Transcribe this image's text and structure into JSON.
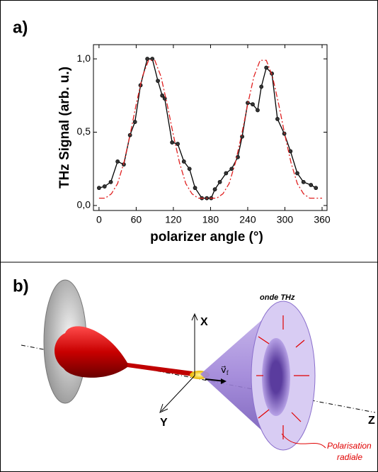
{
  "chart_data": {
    "type": "line",
    "panel_label": "a)",
    "xlabel": "polarizer angle (°)",
    "ylabel": "THz Signal (arb. u.)",
    "xlim": [
      -9,
      368
    ],
    "ylim": [
      -0.034,
      1.097
    ],
    "xticks": [
      0,
      60,
      120,
      180,
      240,
      300,
      360
    ],
    "yticks": [
      {
        "value": 0,
        "label": "0,0"
      },
      {
        "value": 0.5,
        "label": "0,5"
      },
      {
        "value": 1,
        "label": "1,0"
      }
    ],
    "series": [
      {
        "color": "#000000",
        "markers": true,
        "dash": "solid",
        "x": [
          0,
          9,
          19,
          30,
          40,
          50,
          58,
          67,
          78,
          86,
          95,
          102,
          106,
          118,
          127,
          137,
          146,
          155,
          166,
          174,
          181,
          187,
          195,
          205,
          214,
          224,
          231,
          240,
          248,
          256,
          262,
          270,
          279,
          288,
          299,
          309,
          320,
          330,
          342,
          350
        ],
        "values": [
          0.12,
          0.13,
          0.16,
          0.3,
          0.28,
          0.48,
          0.57,
          0.82,
          1.0,
          1.0,
          0.85,
          0.75,
          0.73,
          0.43,
          0.42,
          0.3,
          0.25,
          0.12,
          0.05,
          0.05,
          0.05,
          0.11,
          0.16,
          0.22,
          0.25,
          0.33,
          0.47,
          0.7,
          0.69,
          0.65,
          0.81,
          0.94,
          0.9,
          0.59,
          0.49,
          0.37,
          0.22,
          0.16,
          0.14,
          0.12
        ]
      },
      {
        "color": "#e02020",
        "markers": false,
        "dash": "dashdot",
        "x": [
          0,
          10,
          20,
          30,
          40,
          50,
          60,
          70,
          80,
          90,
          100,
          110,
          120,
          130,
          140,
          150,
          160,
          170,
          180,
          190,
          200,
          210,
          220,
          230,
          240,
          250,
          260,
          270,
          280,
          290,
          300,
          310,
          320,
          330,
          340,
          350,
          360
        ],
        "values": [
          0.05,
          0.05,
          0.08,
          0.15,
          0.29,
          0.48,
          0.69,
          0.88,
          0.99,
          0.99,
          0.88,
          0.69,
          0.48,
          0.29,
          0.15,
          0.08,
          0.05,
          0.05,
          0.05,
          0.05,
          0.08,
          0.15,
          0.29,
          0.48,
          0.69,
          0.88,
          0.99,
          0.99,
          0.88,
          0.69,
          0.48,
          0.29,
          0.15,
          0.08,
          0.05,
          0.05,
          0.05
        ]
      }
    ]
  },
  "diagram": {
    "panel_label": "b)",
    "axis_x": "X",
    "axis_y": "Y",
    "axis_z": "Z",
    "wave": "onde THz",
    "velocity": {
      "main": "v⃗",
      "sub": "f"
    },
    "polarisation": [
      "Polarisation",
      "radiale"
    ]
  }
}
